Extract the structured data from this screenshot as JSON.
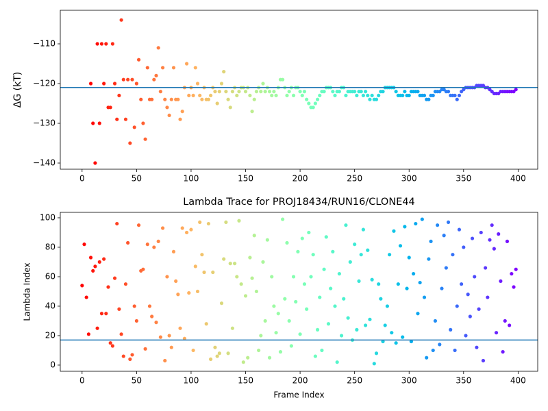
{
  "chart_data": [
    {
      "type": "scatter",
      "ylabel": "ΔG (kT)",
      "colormap": "rainbow_r",
      "hline": -121,
      "hline_color": "#1f77b4",
      "xlim": [
        -20,
        418
      ],
      "ylim": [
        -141.55,
        -101.55
      ],
      "xticks": [
        0,
        50,
        100,
        150,
        200,
        250,
        300,
        350,
        400
      ],
      "yticks": [
        {
          "value": -140,
          "label": "−140"
        },
        {
          "value": -130,
          "label": "−130"
        },
        {
          "value": -120,
          "label": "−120"
        },
        {
          "value": -110,
          "label": "−110"
        }
      ],
      "x": [
        8,
        10,
        12,
        14,
        16,
        18,
        20,
        22,
        24,
        26,
        28,
        30,
        32,
        34,
        36,
        38,
        40,
        42,
        44,
        46,
        48,
        50,
        52,
        54,
        56,
        58,
        60,
        62,
        64,
        66,
        68,
        70,
        72,
        74,
        76,
        78,
        80,
        82,
        84,
        86,
        88,
        90,
        92,
        94,
        96,
        98,
        100,
        102,
        104,
        106,
        108,
        110,
        112,
        114,
        116,
        118,
        120,
        122,
        124,
        126,
        128,
        130,
        132,
        134,
        136,
        138,
        140,
        142,
        144,
        146,
        148,
        150,
        152,
        154,
        156,
        158,
        160,
        162,
        164,
        166,
        168,
        170,
        172,
        174,
        176,
        178,
        180,
        182,
        184,
        186,
        188,
        190,
        192,
        194,
        196,
        198,
        200,
        202,
        204,
        206,
        208,
        210,
        212,
        214,
        216,
        218,
        220,
        222,
        224,
        226,
        228,
        230,
        232,
        234,
        236,
        238,
        240,
        242,
        244,
        246,
        248,
        250,
        252,
        254,
        256,
        258,
        260,
        262,
        264,
        266,
        268,
        270,
        272,
        274,
        276,
        278,
        280,
        282,
        284,
        286,
        288,
        290,
        292,
        294,
        296,
        298,
        300,
        302,
        304,
        306,
        308,
        310,
        312,
        314,
        316,
        318,
        320,
        322,
        324,
        326,
        328,
        330,
        332,
        334,
        336,
        338,
        340,
        342,
        344,
        346,
        348,
        350,
        352,
        354,
        356,
        358,
        360,
        362,
        364,
        366,
        368,
        370,
        372,
        374,
        376,
        378,
        380,
        382,
        384,
        386,
        388,
        390,
        392,
        394,
        396,
        398
      ],
      "values": [
        -120,
        -130,
        -140,
        -110,
        -130,
        -110,
        -120,
        -110,
        -126,
        -126,
        -110,
        -120,
        -129,
        -123,
        -104,
        -119,
        -129,
        -119,
        -135,
        -119,
        -131,
        -120,
        -114,
        -124,
        -130,
        -134,
        -116,
        -124,
        -124,
        -119,
        -118,
        -111,
        -122,
        -116,
        -124,
        -126,
        -128,
        -124,
        -116,
        -124,
        -124,
        -129,
        -127,
        -121,
        -115,
        -123,
        -121,
        -123,
        -116,
        -120,
        -123,
        -124,
        -121,
        -124,
        -124,
        -123,
        -121,
        -122,
        -125,
        -122,
        -120,
        -117,
        -122,
        -124,
        -126,
        -122,
        -121,
        -123,
        -122,
        -121,
        -121,
        -122,
        -121,
        -123,
        -127,
        -124,
        -122,
        -121,
        -122,
        -120,
        -122,
        -121,
        -122,
        -123,
        -122,
        -123,
        -121,
        -119,
        -119,
        -121,
        -123,
        -122,
        -121,
        -123,
        -121,
        -121,
        -122,
        -123,
        -122,
        -124,
        -125,
        -126,
        -126,
        -125,
        -124,
        -123,
        -122,
        -122,
        -121,
        -121,
        -121,
        -122,
        -123,
        -122,
        -122,
        -121,
        -121,
        -123,
        -122,
        -122,
        -122,
        -122,
        -123,
        -122,
        -122,
        -123,
        -122,
        -123,
        -124,
        -123,
        -124,
        -124,
        -123,
        -122,
        -122,
        -121,
        -121,
        -121,
        -121,
        -121,
        -122,
        -123,
        -123,
        -123,
        -122,
        -123,
        -123,
        -122,
        -122,
        -122,
        -122,
        -123,
        -123,
        -123,
        -124,
        -124,
        -123,
        -123,
        -122,
        -122,
        -122,
        -121.5,
        -121.5,
        -122,
        -122,
        -123,
        -123,
        -123,
        -124,
        -123,
        -122,
        -121.5,
        -121,
        -121,
        -121,
        -121,
        -121,
        -120.5,
        -120.5,
        -120.5,
        -120.5,
        -121,
        -121,
        -121.5,
        -122,
        -122.5,
        -122.5,
        -122.5,
        -122,
        -122,
        -122,
        -122,
        -122,
        -122,
        -122,
        -121.5
      ]
    },
    {
      "type": "scatter",
      "title": "Lambda Trace for PROJ18434/RUN16/CLONE44",
      "xlabel": "Frame Index",
      "ylabel": "Lambda Index",
      "colormap": "rainbow_r",
      "hline": 17,
      "hline_color": "#1f77b4",
      "xlim": [
        -20,
        418
      ],
      "ylim": [
        -4.2,
        103.7
      ],
      "xticks": [
        0,
        50,
        100,
        150,
        200,
        250,
        300,
        350,
        400
      ],
      "yticks": [
        0,
        20,
        40,
        60,
        80,
        100
      ],
      "x": [
        0,
        2,
        4,
        6,
        8,
        10,
        12,
        14,
        16,
        18,
        20,
        22,
        24,
        26,
        28,
        30,
        32,
        34,
        36,
        38,
        40,
        42,
        44,
        46,
        48,
        50,
        52,
        54,
        56,
        58,
        60,
        62,
        64,
        66,
        68,
        70,
        72,
        74,
        76,
        78,
        80,
        82,
        84,
        86,
        88,
        90,
        92,
        94,
        96,
        98,
        100,
        102,
        104,
        106,
        108,
        110,
        112,
        114,
        116,
        118,
        120,
        122,
        124,
        126,
        128,
        130,
        132,
        134,
        136,
        138,
        140,
        142,
        144,
        146,
        148,
        150,
        152,
        154,
        156,
        158,
        160,
        162,
        164,
        166,
        168,
        170,
        172,
        174,
        176,
        178,
        180,
        182,
        184,
        186,
        188,
        190,
        192,
        194,
        196,
        198,
        200,
        202,
        204,
        206,
        208,
        210,
        212,
        214,
        216,
        218,
        220,
        222,
        224,
        226,
        228,
        230,
        232,
        234,
        236,
        238,
        240,
        242,
        244,
        246,
        248,
        250,
        252,
        254,
        256,
        258,
        260,
        262,
        264,
        266,
        268,
        270,
        272,
        274,
        276,
        278,
        280,
        282,
        284,
        286,
        288,
        290,
        292,
        294,
        296,
        298,
        300,
        302,
        304,
        306,
        308,
        310,
        312,
        314,
        316,
        318,
        320,
        322,
        324,
        326,
        328,
        330,
        332,
        334,
        336,
        338,
        340,
        342,
        344,
        346,
        348,
        350,
        352,
        354,
        356,
        358,
        360,
        362,
        364,
        366,
        368,
        370,
        372,
        374,
        376,
        378,
        380,
        382,
        384,
        386,
        388,
        390,
        392,
        394,
        396,
        398
      ],
      "values": [
        54,
        82,
        46,
        21,
        73,
        64,
        67,
        25,
        70,
        35,
        72,
        35,
        53,
        15,
        13,
        59,
        96,
        38,
        21,
        6,
        55,
        83,
        4,
        7,
        40,
        30,
        95,
        64,
        65,
        11,
        82,
        40,
        33,
        80,
        29,
        84,
        19,
        93,
        3,
        60,
        20,
        12,
        77,
        57,
        48,
        25,
        93,
        18,
        90,
        49,
        92,
        10,
        67,
        50,
        97,
        75,
        63,
        28,
        96,
        4,
        63,
        12,
        6,
        8,
        42,
        72,
        97,
        8,
        69,
        25,
        69,
        60,
        98,
        55,
        2,
        47,
        5,
        73,
        59,
        88,
        50,
        10,
        20,
        70,
        30,
        85,
        5,
        60,
        40,
        22,
        35,
        9,
        99,
        45,
        83,
        30,
        13,
        60,
        43,
        77,
        21,
        86,
        55,
        38,
        90,
        60,
        75,
        6,
        24,
        46,
        10,
        65,
        87,
        28,
        52,
        77,
        40,
        2,
        62,
        20,
        45,
        95,
        32,
        70,
        17,
        82,
        24,
        57,
        75,
        92,
        27,
        78,
        31,
        58,
        1,
        8,
        55,
        45,
        16,
        27,
        40,
        75,
        22,
        91,
        15,
        55,
        81,
        19,
        94,
        52,
        73,
        16,
        62,
        96,
        35,
        56,
        99,
        46,
        5,
        72,
        84,
        10,
        30,
        95,
        14,
        52,
        88,
        66,
        97,
        24,
        75,
        10,
        40,
        92,
        55,
        80,
        20,
        48,
        33,
        86,
        60,
        12,
        38,
        90,
        3,
        66,
        46,
        85,
        95,
        79,
        22,
        89,
        57,
        9,
        30,
        84,
        27,
        62,
        53,
        65
      ]
    }
  ]
}
